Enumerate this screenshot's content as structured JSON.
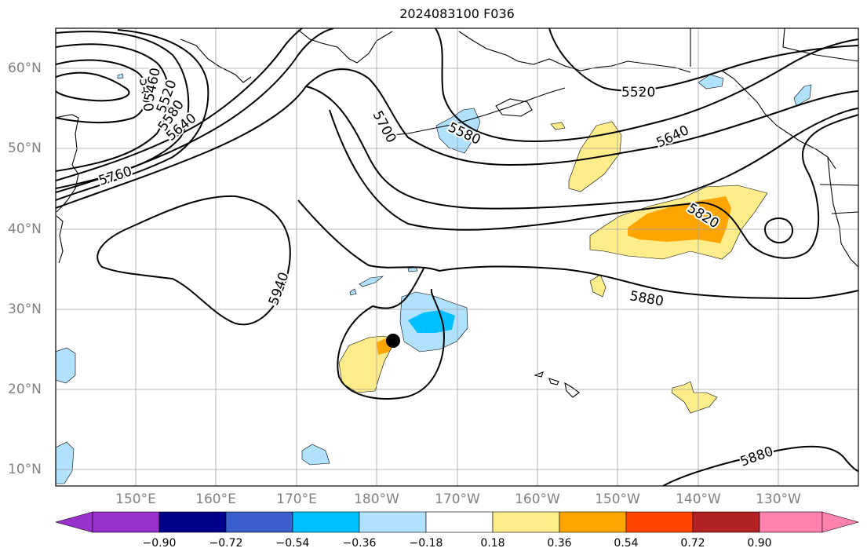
{
  "title": "2024083100 F036",
  "lat_labels": [
    "60°N",
    "50°N",
    "40°N",
    "30°N",
    "20°N",
    "10°N"
  ],
  "lon_labels": [
    "150°E",
    "160°E",
    "170°E",
    "180°W",
    "170°W",
    "160°W",
    "150°W",
    "140°W",
    "130°W"
  ],
  "contour_labels": [
    "5400",
    "5460",
    "5520",
    "5580",
    "5640",
    "5700",
    "5760",
    "5580",
    "5520",
    "5640",
    "5820",
    "5880",
    "5940",
    "5880"
  ],
  "colorbar": {
    "tick_labels": [
      "−0.90",
      "−0.72",
      "−0.54",
      "−0.36",
      "−0.18",
      "0.18",
      "0.36",
      "0.54",
      "0.72",
      "0.90"
    ],
    "colors": [
      "#9932cc",
      "#00008b",
      "#3a5fcd",
      "#00bfff",
      "#b0e2ff",
      "#ffffff",
      "#ffec8b",
      "#ffa500",
      "#ff4500",
      "#b22222",
      "#ff82ab"
    ]
  },
  "marker": "storm-center"
}
